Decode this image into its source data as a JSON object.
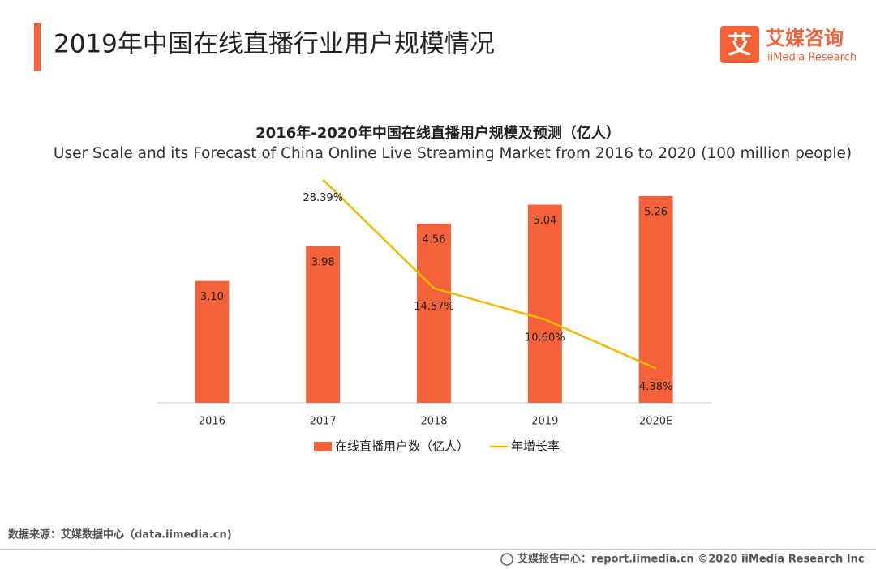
{
  "header": {
    "title": "2019年中国在线直播行业用户规模情况",
    "logo_text": "艾媒咨询",
    "logo_subtext": "iiMedia Research"
  },
  "chart_data": {
    "type": "bar_line",
    "title": "2016年-2020年中国在线直播用户规模及预测（亿人）",
    "subtitle": "User Scale and its Forecast of China Online Live Streaming Market from 2016 to 2020 (100 million people)",
    "categories": [
      "2016",
      "2017",
      "2018",
      "2019",
      "2020E"
    ],
    "ylim": [
      0,
      6
    ],
    "y2lim": [
      0,
      30
    ],
    "legend": "bottom",
    "series": [
      {
        "name": "在线直播用户数（亿人）",
        "type": "bar",
        "color": "#f4623a",
        "values": [
          3.1,
          3.98,
          4.56,
          5.04,
          5.26
        ],
        "value_labels": [
          "3.10",
          "3.98",
          "4.56",
          "5.04",
          "5.26"
        ]
      },
      {
        "name": "年增长率",
        "type": "line",
        "axis": "y2",
        "color": "#f5b800",
        "values": [
          null,
          28.39,
          14.57,
          10.6,
          4.38
        ],
        "value_labels": [
          null,
          "28.39%",
          "14.57%",
          "10.60%",
          "4.38%"
        ]
      }
    ]
  },
  "footer": {
    "source": "数据来源：艾媒数据中心（data.iimedia.cn)",
    "credit": "艾媒报告中心：report.iimedia.cn  ©2020  iiMedia Research  Inc"
  }
}
